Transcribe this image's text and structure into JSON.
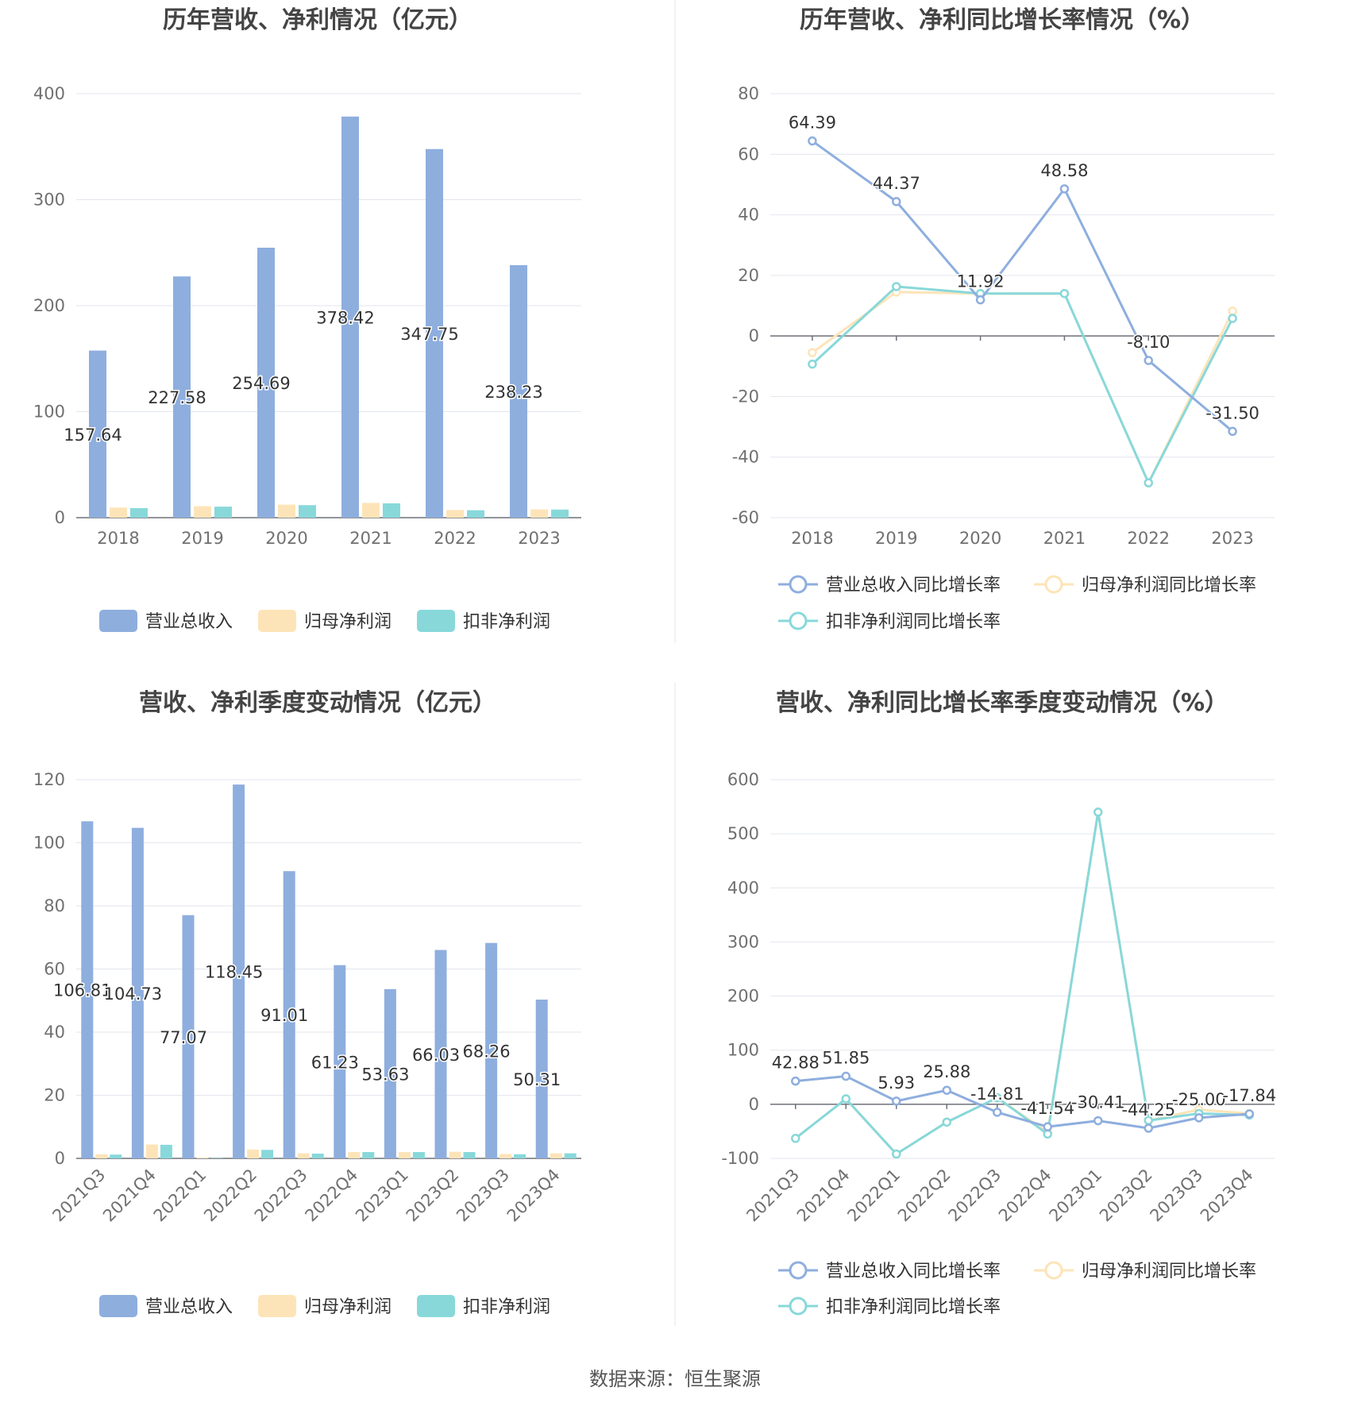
{
  "source_text": "数据来源：恒生聚源",
  "charts": {
    "annual_values": {
      "title": "历年营收、净利情况（亿元）",
      "legend_position": "bottom",
      "chart_data": {
        "type": "bar",
        "categories": [
          "2018",
          "2019",
          "2020",
          "2021",
          "2022",
          "2023"
        ],
        "series": [
          {
            "name": "营业总收入",
            "color": "#8eaede",
            "values": [
              157.64,
              227.58,
              254.69,
              378.42,
              347.75,
              238.23
            ],
            "labels": [
              "157.64",
              "227.58",
              "254.69",
              "378.42",
              "347.75",
              "238.23"
            ]
          },
          {
            "name": "归母净利润",
            "color": "#fde4b8",
            "values": [
              9.5,
              10.8,
              12.3,
              13.9,
              7.2,
              7.8
            ]
          },
          {
            "name": "扣非净利润",
            "color": "#88d8da",
            "values": [
              9.0,
              10.4,
              11.8,
              13.5,
              7.0,
              7.6
            ]
          }
        ],
        "y_ticks": [
          "0",
          "100",
          "200",
          "300",
          "400"
        ],
        "ylim": [
          0,
          400
        ],
        "grid": true
      }
    },
    "annual_growth": {
      "title": "历年营收、净利同比增长率情况（%）",
      "legend_position": "bottom",
      "chart_data": {
        "type": "line",
        "categories": [
          "2018",
          "2019",
          "2020",
          "2021",
          "2022",
          "2023"
        ],
        "series": [
          {
            "name": "营业总收入同比增长率",
            "color": "#8eaede",
            "values": [
              64.39,
              44.37,
              11.92,
              48.58,
              -8.1,
              -31.5
            ],
            "labels": [
              "64.39",
              "44.37",
              "11.92",
              "48.58",
              "-8.10",
              "-31.50"
            ]
          },
          {
            "name": "归母净利润同比增长率",
            "color": "#fde4b8",
            "values": [
              -5.5,
              14.5,
              14.0,
              14.0,
              -48.5,
              8.2
            ]
          },
          {
            "name": "扣非净利润同比增长率",
            "color": "#88d8da",
            "values": [
              -9.3,
              16.3,
              14.0,
              14.0,
              -48.5,
              5.8
            ]
          }
        ],
        "y_ticks": [
          "-60",
          "-40",
          "-20",
          "0",
          "20",
          "40",
          "60",
          "80"
        ],
        "ylim": [
          -60,
          80
        ],
        "grid": true
      }
    },
    "quarterly_values": {
      "title": "营收、净利季度变动情况（亿元）",
      "legend_position": "bottom",
      "chart_data": {
        "type": "bar",
        "categories": [
          "2021Q3",
          "2021Q4",
          "2022Q1",
          "2022Q2",
          "2022Q3",
          "2022Q4",
          "2023Q1",
          "2023Q2",
          "2023Q3",
          "2023Q4"
        ],
        "series": [
          {
            "name": "营业总收入",
            "color": "#8eaede",
            "values": [
              106.81,
              104.73,
              77.07,
              118.45,
              91.01,
              61.23,
              53.63,
              66.03,
              68.26,
              50.31
            ],
            "labels": [
              "106.81",
              "104.73",
              "77.07",
              "118.45",
              "91.01",
              "61.23",
              "53.63",
              "66.03",
              "68.26",
              "50.31"
            ]
          },
          {
            "name": "归母净利润",
            "color": "#fde4b8",
            "values": [
              1.3,
              4.4,
              0.3,
              2.8,
              1.6,
              2.0,
              2.0,
              2.1,
              1.4,
              1.6
            ]
          },
          {
            "name": "扣非净利润",
            "color": "#88d8da",
            "values": [
              1.2,
              4.3,
              0.1,
              2.7,
              1.5,
              2.0,
              2.0,
              2.0,
              1.3,
              1.6
            ]
          }
        ],
        "y_ticks": [
          "0",
          "20",
          "40",
          "60",
          "80",
          "100",
          "120"
        ],
        "ylim": [
          0,
          120
        ],
        "grid": true
      }
    },
    "quarterly_growth": {
      "title": "营收、净利同比增长率季度变动情况（%）",
      "legend_position": "bottom",
      "chart_data": {
        "type": "line",
        "categories": [
          "2021Q3",
          "2021Q4",
          "2022Q1",
          "2022Q2",
          "2022Q3",
          "2022Q4",
          "2023Q1",
          "2023Q2",
          "2023Q3",
          "2023Q4"
        ],
        "series": [
          {
            "name": "营业总收入同比增长率",
            "color": "#8eaede",
            "values": [
              42.88,
              51.85,
              5.93,
              25.88,
              -14.81,
              -41.54,
              -30.41,
              -44.25,
              -25.0,
              -17.84
            ],
            "labels": [
              "42.88",
              "51.85",
              "5.93",
              "25.88",
              "-14.81",
              "-41.54",
              "-30.41",
              "-44.25",
              "-25.00",
              "-17.84"
            ]
          },
          {
            "name": "归母净利润同比增长率",
            "color": "#fde4b8",
            "values": [
              -63,
              10,
              -92,
              -33,
              12,
              -52,
              540,
              -30,
              -10,
              -17
            ]
          },
          {
            "name": "扣非净利润同比增长率",
            "color": "#88d8da",
            "values": [
              -63,
              10,
              -92,
              -33,
              12,
              -55,
              540,
              -30,
              -17,
              -20
            ]
          }
        ],
        "y_ticks": [
          "-100",
          "0",
          "100",
          "200",
          "300",
          "400",
          "500",
          "600"
        ],
        "ylim": [
          -100,
          600
        ],
        "grid": true
      }
    }
  }
}
